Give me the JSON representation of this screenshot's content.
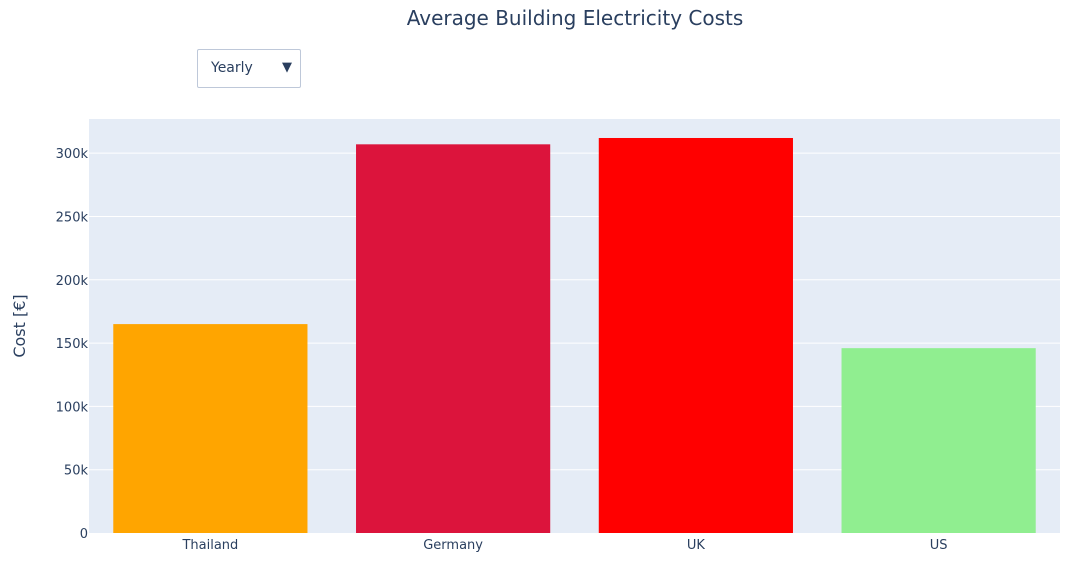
{
  "chart_data": {
    "type": "bar",
    "title": "Average Building Electricity Costs",
    "xlabel": "",
    "ylabel": "Cost [€]",
    "categories": [
      "Thailand",
      "Germany",
      "UK",
      "US"
    ],
    "values": [
      165000,
      307000,
      312000,
      146000
    ],
    "colors": [
      "#ffa500",
      "#dc143c",
      "#ff0000",
      "#90ee90"
    ],
    "ylim": [
      0,
      327000
    ],
    "yticks": [
      0,
      50000,
      100000,
      150000,
      200000,
      250000,
      300000
    ],
    "ytick_labels": [
      "0",
      "50k",
      "100k",
      "150k",
      "200k",
      "250k",
      "300k"
    ],
    "grid": true,
    "plot_background": "#e5ecf6"
  },
  "controls": {
    "period_dropdown": {
      "selected": "Yearly",
      "arrow": "▼"
    }
  }
}
